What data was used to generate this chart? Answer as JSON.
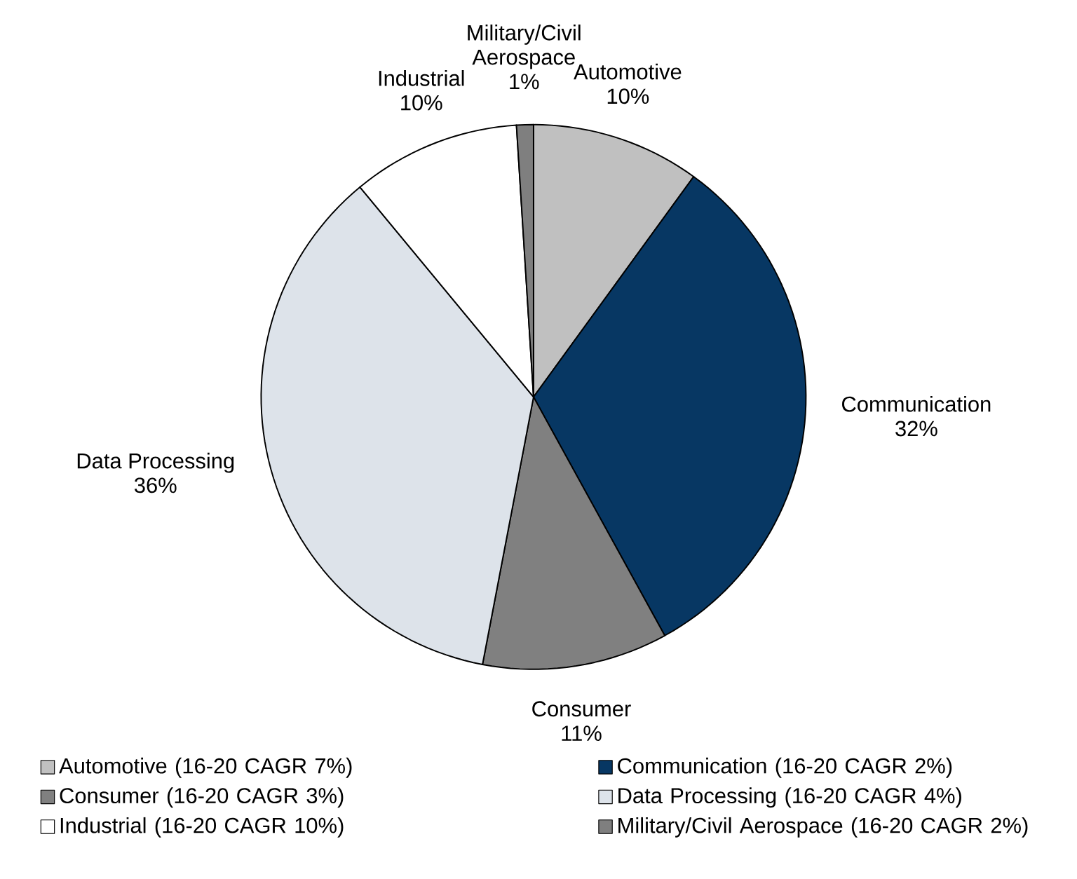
{
  "chart_data": {
    "type": "pie",
    "categories": [
      "Automotive",
      "Communication",
      "Consumer",
      "Data Processing",
      "Industrial",
      "Military/Civil Aerospace"
    ],
    "values": [
      10,
      32,
      11,
      36,
      10,
      1
    ],
    "colors": [
      "#c0c0c0",
      "#073763",
      "#808080",
      "#dde3ea",
      "#ffffff",
      "#7f7f7f"
    ],
    "data_labels": true,
    "value_labels": [
      "10%",
      "32%",
      "11%",
      "36%",
      "10%",
      "1%"
    ],
    "legend": "bottom",
    "annotations": [
      "(16-20 CAGR 7%)",
      "(16-20 CAGR 2%)",
      "(16-20 CAGR 3%)",
      "(16-20 CAGR 4%)",
      "(16-20 CAGR 10%)",
      "(16-20 CAGR 2%)"
    ]
  }
}
